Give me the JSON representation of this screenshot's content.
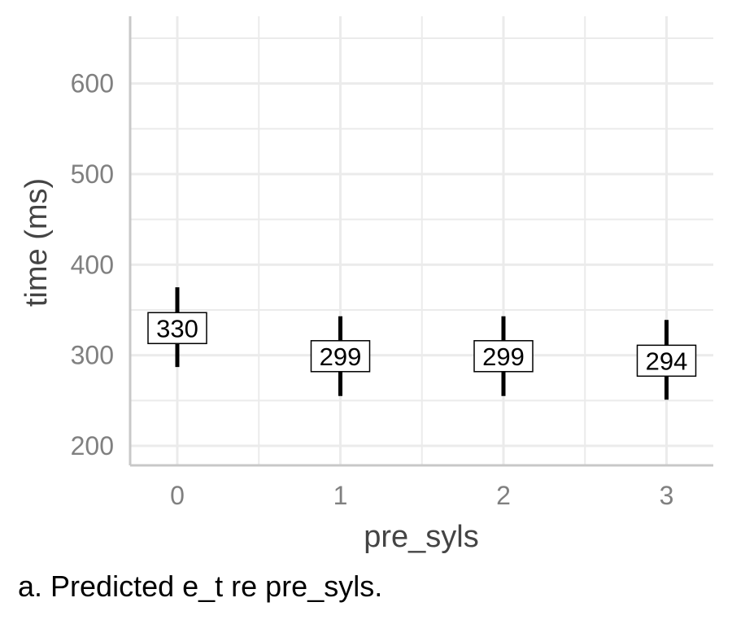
{
  "chart_data": {
    "type": "scatter",
    "xlabel": "pre_syls",
    "ylabel": "time (ms)",
    "categories": [
      "0",
      "1",
      "2",
      "3"
    ],
    "x_ticks": [
      "0",
      "1",
      "2",
      "3"
    ],
    "y_ticks": [
      "200",
      "300",
      "400",
      "500",
      "600"
    ],
    "ylim": [
      190,
      670
    ],
    "grid": true,
    "points": [
      {
        "x": "0",
        "estimate": 330,
        "label": "330",
        "lower": 287,
        "upper": 375
      },
      {
        "x": "1",
        "estimate": 299,
        "label": "299",
        "lower": 255,
        "upper": 343
      },
      {
        "x": "2",
        "estimate": 299,
        "label": "299",
        "lower": 255,
        "upper": 343
      },
      {
        "x": "3",
        "estimate": 294,
        "label": "294",
        "lower": 251,
        "upper": 339
      }
    ],
    "colors": {
      "grid": "#ebebeb",
      "axis": "#c8c8c8",
      "interval": "#000000",
      "label_border": "#000000",
      "tick_text": "#808080",
      "title_text": "#444444"
    }
  },
  "caption": "a. Predicted e_t re pre_syls."
}
